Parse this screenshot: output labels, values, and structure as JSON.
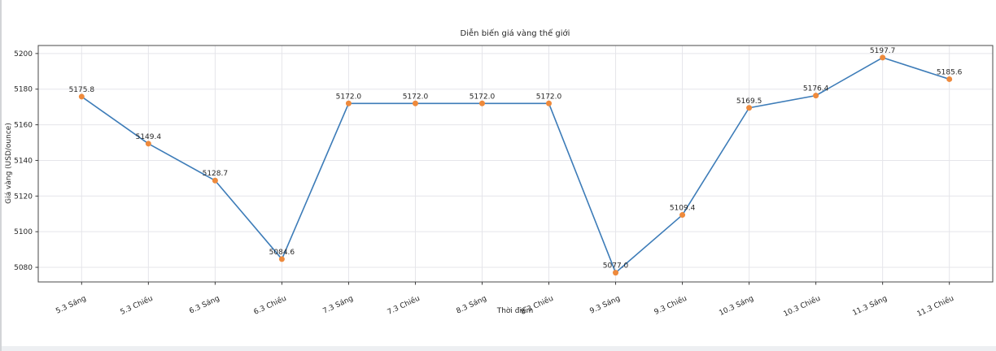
{
  "figure": {
    "background": "#ffffff",
    "left_border_color": "#d2d4d7",
    "bottom_strip_color": "#edeff2"
  },
  "chart_data": {
    "type": "line",
    "title": "Diễn biến giá vàng thế giới",
    "xlabel": "Thời điểm",
    "ylabel": "Giá vàng (USD/ounce)",
    "categories": [
      "5.3 Sáng",
      "5.3 Chiều",
      "6.3 Sáng",
      "6.3 Chiều",
      "7.3 Sáng",
      "7.3 Chiều",
      "8.3 Sáng",
      "8.3 Chiều",
      "9.3 Sáng",
      "9.3 Chiều",
      "10.3 Sáng",
      "10.3 Chiều",
      "11.3 Sáng",
      "11.3 Chiều"
    ],
    "values": [
      5175.8,
      5149.4,
      5128.7,
      5084.6,
      5172.0,
      5172.0,
      5172.0,
      5172.0,
      5077.0,
      5109.4,
      5169.5,
      5176.4,
      5197.7,
      5185.6
    ],
    "y_ticks": [
      5080,
      5100,
      5120,
      5140,
      5160,
      5180,
      5200
    ],
    "ylim": [
      5071.8,
      5204.5
    ],
    "x_margin": 0.65,
    "grid": true,
    "legend": "none",
    "xtick_rotation": -25,
    "line_color": "#3d7cb8",
    "marker_color": "#ee8a3c",
    "grid_color": "#e5e5ea",
    "spine_color": "#4a4a4a",
    "tick_color": "#3a3a3a",
    "text_color": "#262626"
  }
}
